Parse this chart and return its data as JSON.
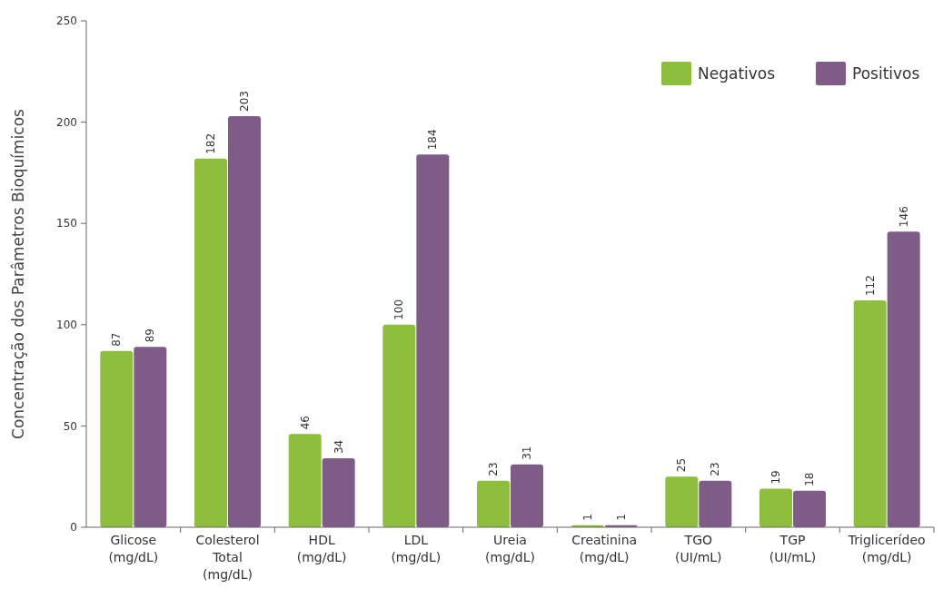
{
  "chart_data": {
    "type": "bar",
    "ylabel": "Concentração dos Parâmetros Bioquímicos",
    "categories": [
      "Glicose\n(mg/dL)",
      "Colesterol\nTotal\n(mg/dL)",
      "HDL\n(mg/dL)",
      "LDL\n(mg/dL)",
      "Ureia\n(mg/dL)",
      "Creatinina\n(mg/dL)",
      "TGO\n(UI/mL)",
      "TGP\n(UI/mL)",
      "Triglicerídeo\n(mg/dL)"
    ],
    "series": [
      {
        "name": "Negativos",
        "color": "#8dbf3c",
        "values": [
          87,
          182,
          46,
          100,
          23,
          1,
          25,
          19,
          112
        ]
      },
      {
        "name": "Positivos",
        "color": "#7f5b87",
        "values": [
          89,
          203,
          34,
          184,
          31,
          1,
          23,
          18,
          146
        ]
      }
    ],
    "ylim": [
      0,
      250
    ],
    "yticks": [
      0,
      50,
      100,
      150,
      200,
      250
    ],
    "grid": false,
    "legend": "top right",
    "data_labels": true
  }
}
